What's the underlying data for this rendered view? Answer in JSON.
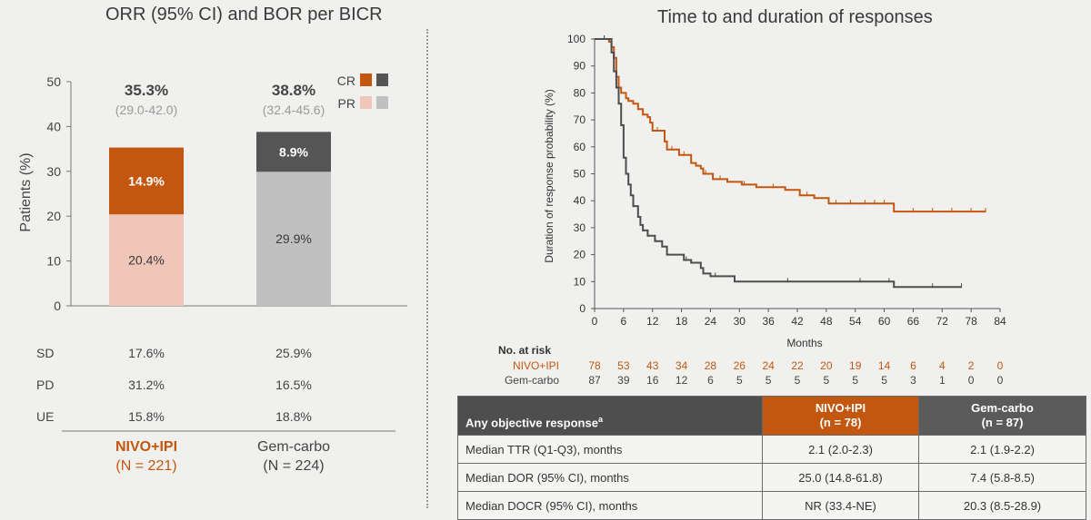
{
  "chart_data": [
    {
      "type": "bar",
      "stacked": true,
      "title": "ORR (95% CI) and BOR per BICR",
      "ylabel": "Patients (%)",
      "ylim": [
        0,
        50
      ],
      "yticks": [
        "0",
        "10",
        "20",
        "30",
        "40",
        "50"
      ],
      "categories": [
        "NIVO+IPI",
        "Gem-carbo"
      ],
      "category_labels": [
        "NIVO+IPI",
        "Gem-carbo"
      ],
      "category_sublabels": [
        "(N = 221)",
        "(N = 224)"
      ],
      "series": [
        {
          "name": "PR",
          "values": [
            20.4,
            29.9
          ],
          "labels": [
            "20.4%",
            "29.9%"
          ]
        },
        {
          "name": "CR",
          "values": [
            14.9,
            8.9
          ],
          "labels": [
            "14.9%",
            "8.9%"
          ]
        }
      ],
      "totals": [
        "35.3%",
        "38.8%"
      ],
      "ci": [
        "(29.0-42.0)",
        "(32.4-45.6)"
      ],
      "legend": [
        {
          "name": "CR"
        },
        {
          "name": "PR"
        }
      ],
      "other_responses": {
        "labels": [
          "SD",
          "PD",
          "UE"
        ],
        "rows": [
          [
            "17.6%",
            "25.9%"
          ],
          [
            "31.2%",
            "16.5%"
          ],
          [
            "15.8%",
            "18.8%"
          ]
        ]
      },
      "colors": {
        "cr_nivo": "#c4570f",
        "cr_gem": "#555555",
        "pr_nivo": "#efc6b8",
        "pr_gem": "#c0c0c0"
      }
    },
    {
      "type": "line",
      "title": "Time to and duration of responses",
      "xlabel": "Months",
      "ylabel": "Duration of response probability (%)",
      "xlim": [
        0,
        84
      ],
      "ylim": [
        0,
        100
      ],
      "xticks": [
        "0",
        "6",
        "12",
        "18",
        "24",
        "30",
        "36",
        "42",
        "48",
        "54",
        "60",
        "66",
        "72",
        "78",
        "84"
      ],
      "yticks": [
        "0",
        "10",
        "20",
        "30",
        "40",
        "50",
        "60",
        "70",
        "80",
        "90",
        "100"
      ],
      "series": [
        {
          "name": "NIVO+IPI",
          "color": "#c4570f",
          "points": [
            [
              0,
              100
            ],
            [
              2.5,
              100
            ],
            [
              3,
              99
            ],
            [
              3.5,
              97
            ],
            [
              4,
              93
            ],
            [
              4.5,
              86
            ],
            [
              5,
              82
            ],
            [
              5.5,
              80
            ],
            [
              6,
              80
            ],
            [
              6.5,
              78
            ],
            [
              7,
              77
            ],
            [
              8,
              76
            ],
            [
              9,
              74
            ],
            [
              10,
              72
            ],
            [
              11,
              71
            ],
            [
              11.5,
              69
            ],
            [
              12,
              66
            ],
            [
              14,
              66
            ],
            [
              14.5,
              62
            ],
            [
              15,
              59
            ],
            [
              17,
              59
            ],
            [
              17.5,
              57
            ],
            [
              19,
              57
            ],
            [
              20,
              54
            ],
            [
              21,
              53
            ],
            [
              22,
              52
            ],
            [
              22.5,
              50
            ],
            [
              24,
              50
            ],
            [
              24.5,
              48
            ],
            [
              27,
              48
            ],
            [
              27.5,
              47
            ],
            [
              30,
              47
            ],
            [
              30.5,
              46
            ],
            [
              33,
              46
            ],
            [
              33.5,
              45
            ],
            [
              39,
              45
            ],
            [
              39.5,
              44
            ],
            [
              42,
              44
            ],
            [
              42.5,
              42
            ],
            [
              45,
              42
            ],
            [
              45.5,
              41
            ],
            [
              48,
              41
            ],
            [
              48.5,
              39
            ],
            [
              61.5,
              39
            ],
            [
              62,
              36
            ],
            [
              81,
              36
            ]
          ],
          "end_month": 81
        },
        {
          "name": "Gem-carbo",
          "color": "#4d4d4d",
          "points": [
            [
              0,
              100
            ],
            [
              3,
              100
            ],
            [
              3.5,
              95
            ],
            [
              4,
              88
            ],
            [
              4.5,
              82
            ],
            [
              5,
              76
            ],
            [
              5.5,
              68
            ],
            [
              6,
              56
            ],
            [
              6.5,
              50
            ],
            [
              7,
              46
            ],
            [
              7.5,
              42
            ],
            [
              8,
              38
            ],
            [
              9,
              34
            ],
            [
              9.5,
              31
            ],
            [
              10,
              29
            ],
            [
              11,
              27
            ],
            [
              12,
              27
            ],
            [
              12.5,
              25
            ],
            [
              14,
              23
            ],
            [
              15,
              20
            ],
            [
              18,
              20
            ],
            [
              18.5,
              18
            ],
            [
              20,
              17
            ],
            [
              22,
              15
            ],
            [
              22.5,
              13
            ],
            [
              24,
              12
            ],
            [
              28,
              12
            ],
            [
              29,
              10
            ],
            [
              61.5,
              10
            ],
            [
              62,
              8
            ],
            [
              76,
              8
            ]
          ],
          "end_month": 76
        }
      ],
      "at_risk": {
        "title": "No. at risk",
        "rows": [
          {
            "name": "NIVO+IPI",
            "values": [
              "78",
              "53",
              "43",
              "34",
              "28",
              "26",
              "24",
              "22",
              "20",
              "19",
              "14",
              "6",
              "4",
              "2",
              "0"
            ]
          },
          {
            "name": "Gem-carbo",
            "values": [
              "87",
              "39",
              "16",
              "12",
              "6",
              "5",
              "5",
              "5",
              "5",
              "5",
              "5",
              "3",
              "1",
              "0",
              "0"
            ]
          }
        ]
      }
    }
  ],
  "response_table": {
    "header": {
      "label": "Any objective response",
      "label_sup": "a",
      "col1_line1": "NIVO+IPI",
      "col1_line2": "(n = 78)",
      "col2_line1": "Gem-carbo",
      "col2_line2": "(n = 87)"
    },
    "rows": [
      {
        "label": "Median TTR (Q1-Q3), months",
        "nivo": "2.1 (2.0-2.3)",
        "gem": "2.1 (1.9-2.2)"
      },
      {
        "label": "Median DOR (95% CI), months",
        "nivo": "25.0 (14.8-61.8)",
        "gem": "7.4 (5.8-8.5)"
      },
      {
        "label": "Median DOCR (95% CI), months",
        "nivo": "NR (33.4-NE)",
        "gem": "20.3 (8.5-28.9)"
      }
    ]
  }
}
